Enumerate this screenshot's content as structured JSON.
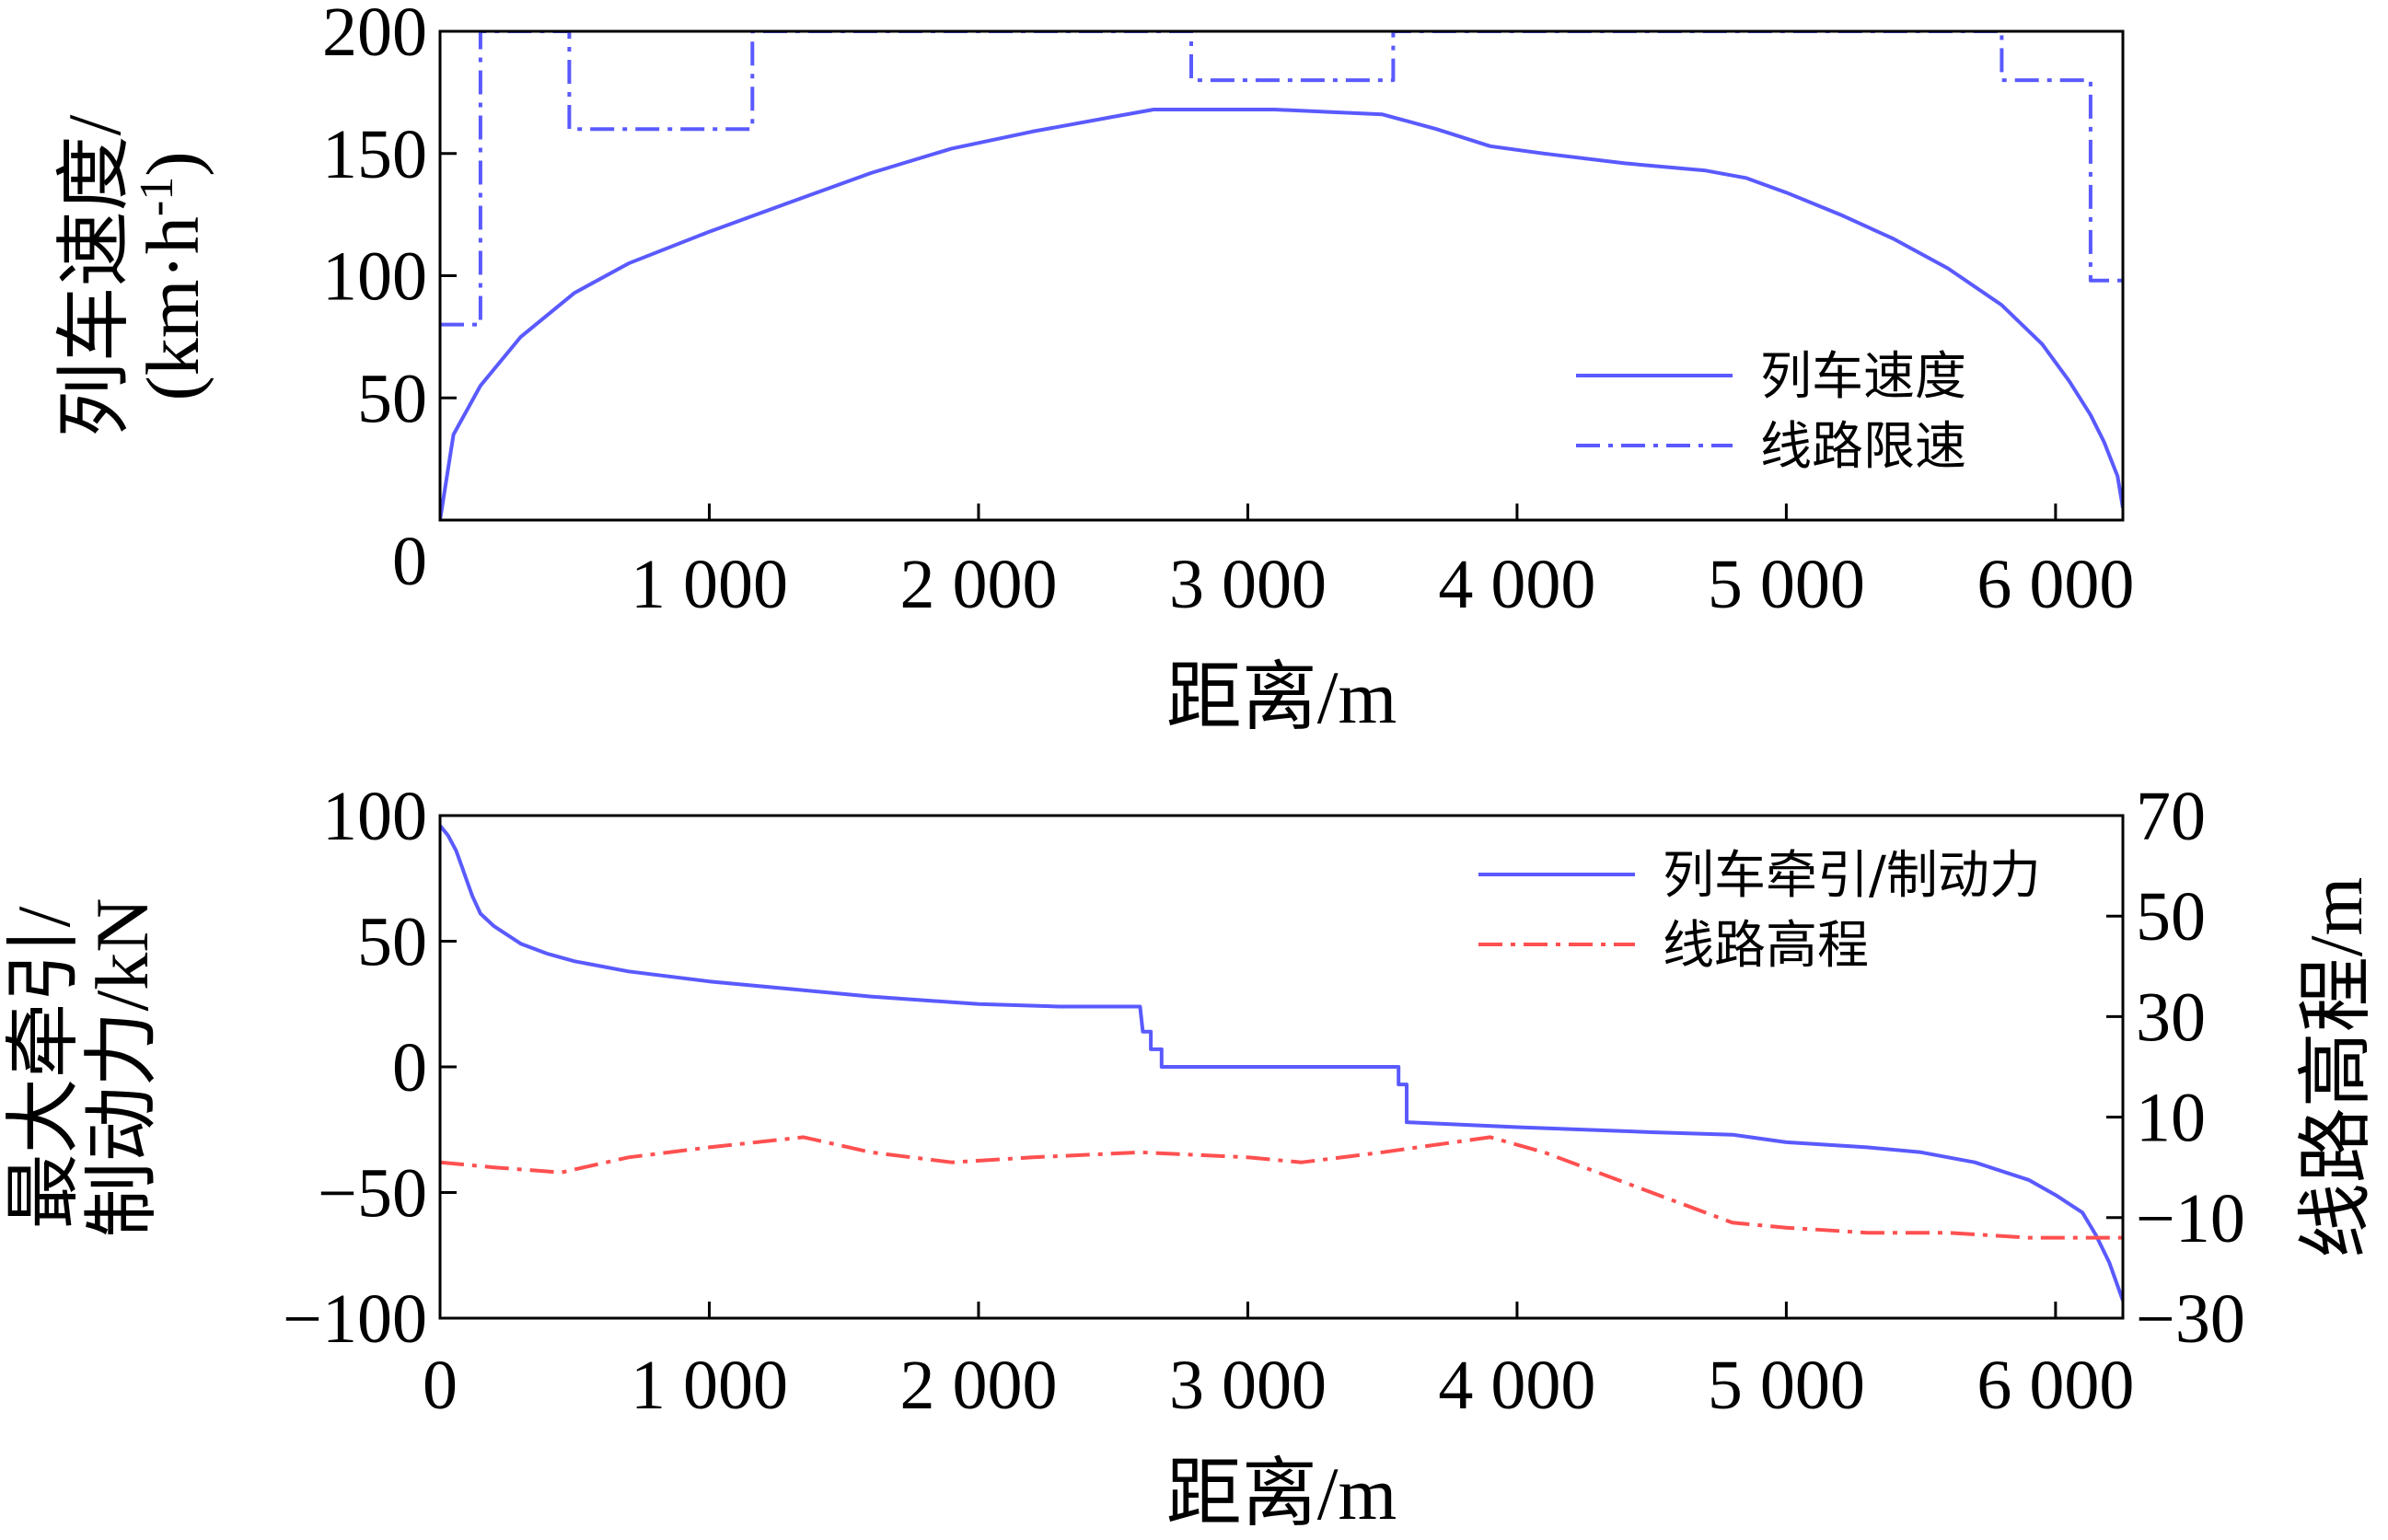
{
  "chart_data": [
    {
      "type": "line",
      "xlabel": "距离/m",
      "ylabel_lines": [
        "列车速度/",
        "(km·h",
        "-1",
        ")"
      ],
      "xlim": [
        0,
        6250
      ],
      "ylim": [
        0,
        200
      ],
      "x_ticks": [
        1000,
        2000,
        3000,
        4000,
        5000,
        6000
      ],
      "x_tick_labels": [
        "1 000",
        "2 000",
        "3 000",
        "4 000",
        "5 000",
        "6 000"
      ],
      "y_ticks": [
        0,
        50,
        100,
        150,
        200
      ],
      "y_tick_labels": [
        "0",
        "50",
        "100",
        "150",
        "200"
      ],
      "legend_position": "bottom-right",
      "series": [
        {
          "name": "列车速度",
          "style": "solid",
          "color": "#5a5aff",
          "x": [
            0,
            50,
            150,
            300,
            500,
            700,
            1000,
            1300,
            1600,
            1900,
            2200,
            2500,
            2650,
            2800,
            3100,
            3300,
            3500,
            3700,
            3900,
            4100,
            4400,
            4700,
            4850,
            5000,
            5200,
            5400,
            5600,
            5800,
            5950,
            6050,
            6130,
            6180,
            6230,
            6250
          ],
          "y": [
            0,
            35,
            55,
            75,
            93,
            105,
            118,
            130,
            142,
            152,
            159,
            165,
            168,
            168,
            168,
            167,
            166,
            160,
            153,
            150,
            146,
            143,
            140,
            134,
            125,
            115,
            103,
            88,
            72,
            57,
            43,
            32,
            18,
            5
          ]
        },
        {
          "name": "线路限速",
          "style": "dashdot",
          "color": "#5a5aff",
          "x": [
            0,
            150,
            150,
            480,
            480,
            1160,
            1160,
            2790,
            2790,
            3540,
            3540,
            5800,
            5800,
            6130,
            6130,
            6250
          ],
          "y": [
            80,
            80,
            200,
            200,
            160,
            160,
            200,
            200,
            180,
            180,
            200,
            200,
            180,
            180,
            98,
            98
          ]
        }
      ]
    },
    {
      "type": "line",
      "xlabel": "距离/m",
      "ylabel_lines": [
        "最大牵引/",
        "制动力/kN"
      ],
      "y2label": "线路高程/m",
      "xlim": [
        0,
        6250
      ],
      "ylim": [
        -100,
        100
      ],
      "y2lim": [
        -30,
        70
      ],
      "x_ticks": [
        0,
        1000,
        2000,
        3000,
        4000,
        5000,
        6000
      ],
      "x_tick_labels": [
        "0",
        "1 000",
        "2 000",
        "3 000",
        "4 000",
        "5 000",
        "6 000"
      ],
      "y_ticks": [
        -100,
        -50,
        0,
        50,
        100
      ],
      "y_tick_labels": [
        "−100",
        "−50",
        "0",
        "50",
        "100"
      ],
      "y2_ticks": [
        -30,
        -10,
        10,
        30,
        50,
        70
      ],
      "y2_tick_labels": [
        "−30",
        "−10",
        "10",
        "30",
        "50",
        "70"
      ],
      "legend_position": "top-right",
      "series": [
        {
          "name": "列车牵引/制动力",
          "axis": "left",
          "style": "solid",
          "color": "#5a5aff",
          "x": [
            0,
            30,
            60,
            80,
            100,
            120,
            150,
            200,
            300,
            400,
            500,
            700,
            1000,
            1300,
            1600,
            2000,
            2300,
            2600,
            2610,
            2640,
            2640,
            2680,
            2680,
            3540,
            3560,
            3560,
            3590,
            3590,
            4000,
            4500,
            4800,
            5000,
            5300,
            5500,
            5700,
            5900,
            6000,
            6100,
            6150,
            6200,
            6250
          ],
          "y": [
            96,
            92,
            86,
            80,
            74,
            68,
            61,
            56,
            49,
            45,
            42,
            38,
            34,
            31,
            28,
            25,
            24,
            24,
            14,
            14,
            7,
            7,
            0,
            0,
            0,
            -7,
            -7,
            -22,
            -24,
            -26,
            -27,
            -30,
            -32,
            -34,
            -38,
            -45,
            -51,
            -58,
            -67,
            -78,
            -93
          ]
        },
        {
          "name": "线路高程",
          "axis": "right",
          "style": "dashdot",
          "color": "#ff5050",
          "x": [
            0,
            200,
            450,
            700,
            1000,
            1350,
            1600,
            1900,
            2200,
            2600,
            3000,
            3200,
            3500,
            3900,
            4100,
            4400,
            4800,
            5000,
            5300,
            5600,
            5900,
            6250
          ],
          "y": [
            1,
            0,
            -1,
            2,
            4,
            6,
            3,
            1,
            2,
            3,
            2,
            1,
            3,
            6,
            3,
            -3,
            -11,
            -12,
            -13,
            -13,
            -14,
            -14
          ]
        }
      ]
    }
  ]
}
